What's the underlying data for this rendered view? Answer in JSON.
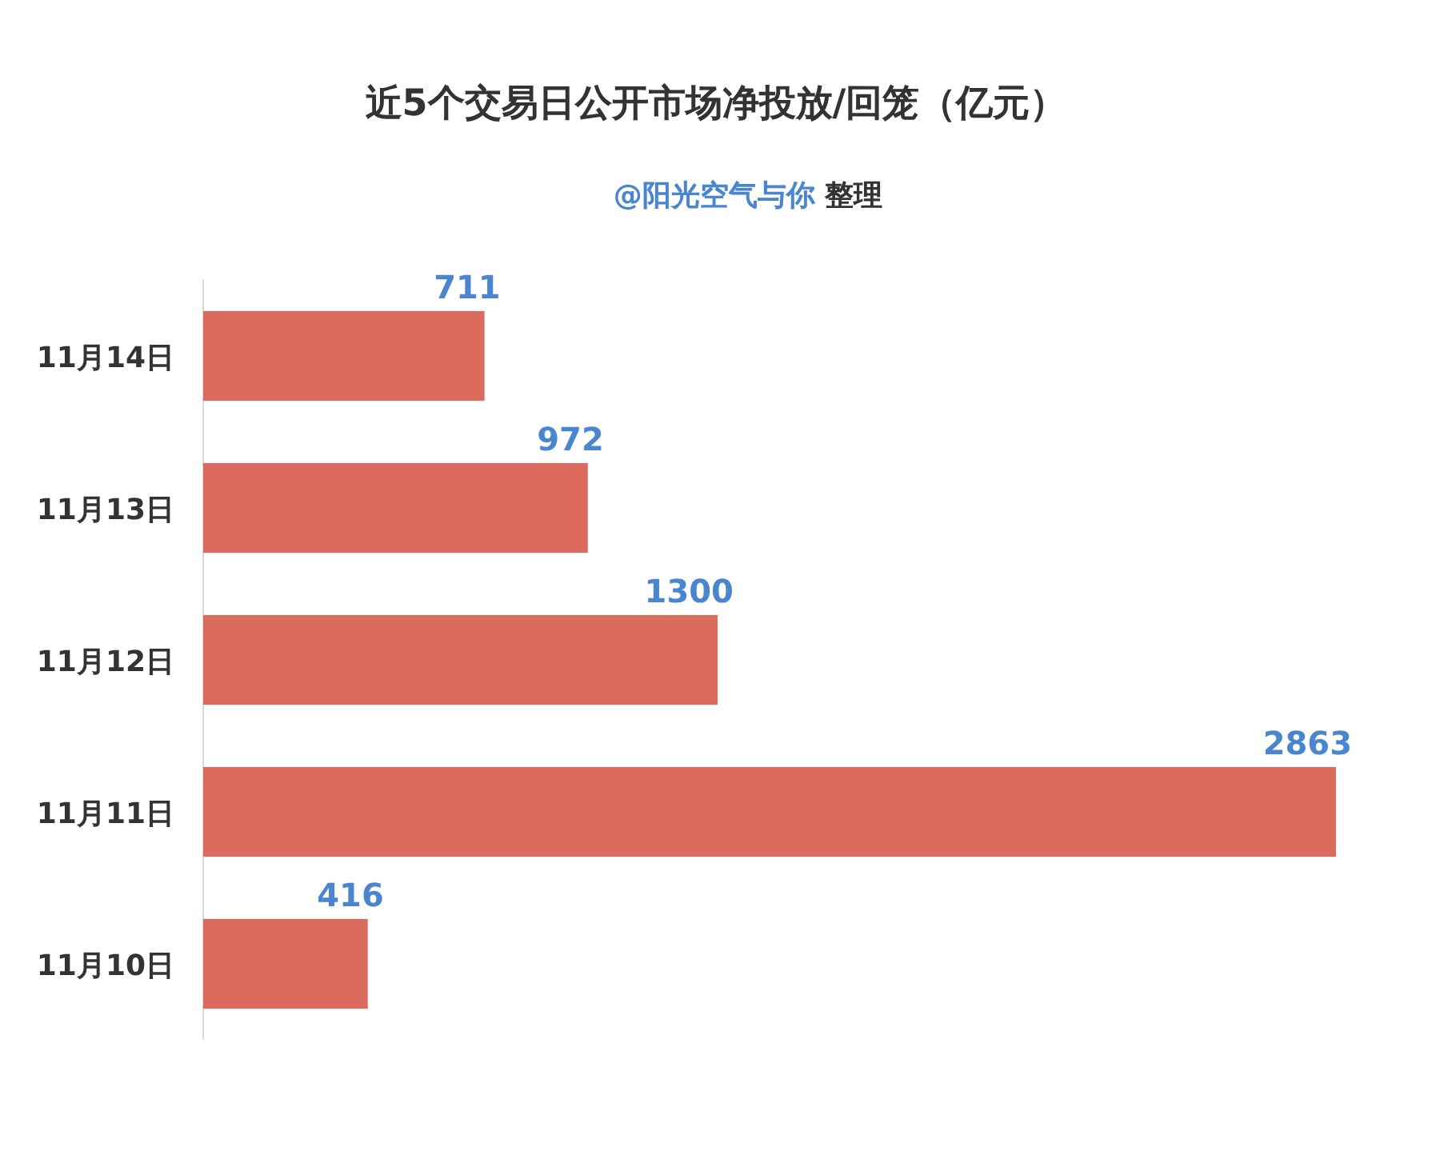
{
  "chart_data": {
    "type": "bar",
    "orientation": "horizontal",
    "title": "近5个交易日公开市场净投放/回笼（亿元）",
    "subtitle": "@阳光空气与你 整理",
    "categories": [
      "11月14日",
      "11月13日",
      "11月12日",
      "11月11日",
      "11月10日"
    ],
    "values": [
      711,
      972,
      1300,
      2863,
      416
    ],
    "color": "#dd6b5d",
    "data_labels": true
  }
}
